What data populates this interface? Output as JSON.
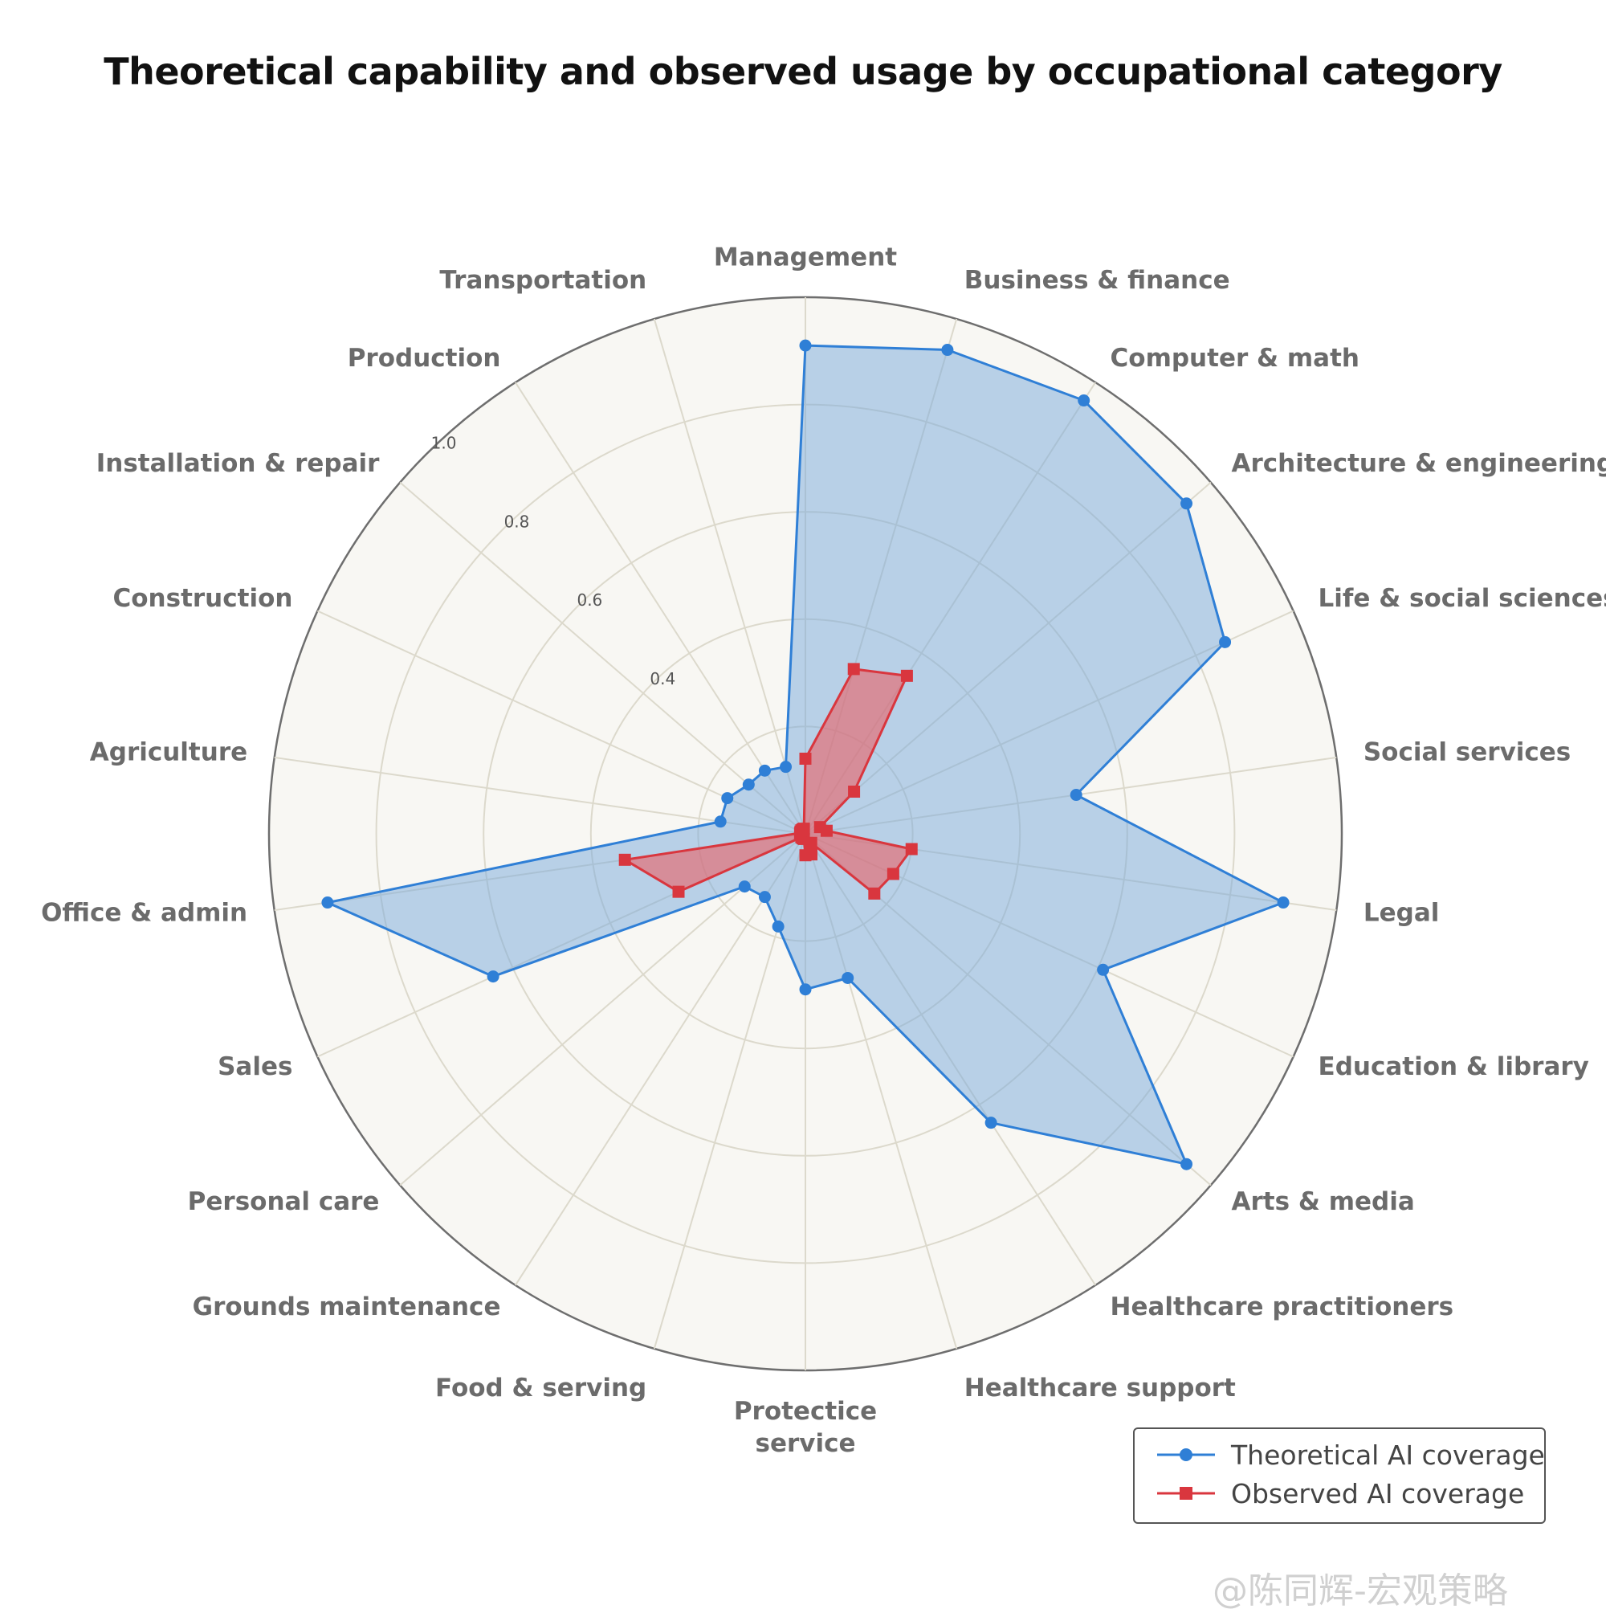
{
  "chart_data": {
    "type": "radar",
    "title": "Theoretical capability and observed usage by occupational category",
    "categories": [
      "Management",
      "Business & finance",
      "Computer & math",
      "Architecture & engineering",
      "Life & social sciences",
      "Social services",
      "Legal",
      "Education & library",
      "Arts & media",
      "Healthcare practitioners",
      "Healthcare support",
      "Protectice service",
      "Food & serving",
      "Grounds maintenance",
      "Personal care",
      "Sales",
      "Office & admin",
      "Agriculture",
      "Construction",
      "Installation & repair",
      "Production",
      "Transportation"
    ],
    "rlim": [
      0,
      1.0
    ],
    "rticks": [
      "0.4",
      "0.6",
      "0.8",
      "1.0"
    ],
    "rtick_values": [
      0.4,
      0.6,
      0.8,
      1.0
    ],
    "grid": true,
    "legend_position": "bottom-right",
    "series": [
      {
        "name": "Theoretical AI coverage",
        "color": "#2f7fd6",
        "marker": "circle",
        "values": [
          0.91,
          0.94,
          0.96,
          0.94,
          0.86,
          0.51,
          0.9,
          0.61,
          0.94,
          0.64,
          0.28,
          0.29,
          0.18,
          0.14,
          0.15,
          0.64,
          0.9,
          0.16,
          0.16,
          0.14,
          0.14,
          0.13
        ]
      },
      {
        "name": "Observed AI coverage",
        "color": "#d9363e",
        "marker": "square",
        "values": [
          0.14,
          0.32,
          0.35,
          0.12,
          0.03,
          0.04,
          0.2,
          0.18,
          0.17,
          0.02,
          0.04,
          0.04,
          0.01,
          0.01,
          0.01,
          0.26,
          0.34,
          0.01,
          0.01,
          0.01,
          0.01,
          0.01
        ]
      }
    ]
  },
  "watermark": "@陈同辉-宏观策略"
}
